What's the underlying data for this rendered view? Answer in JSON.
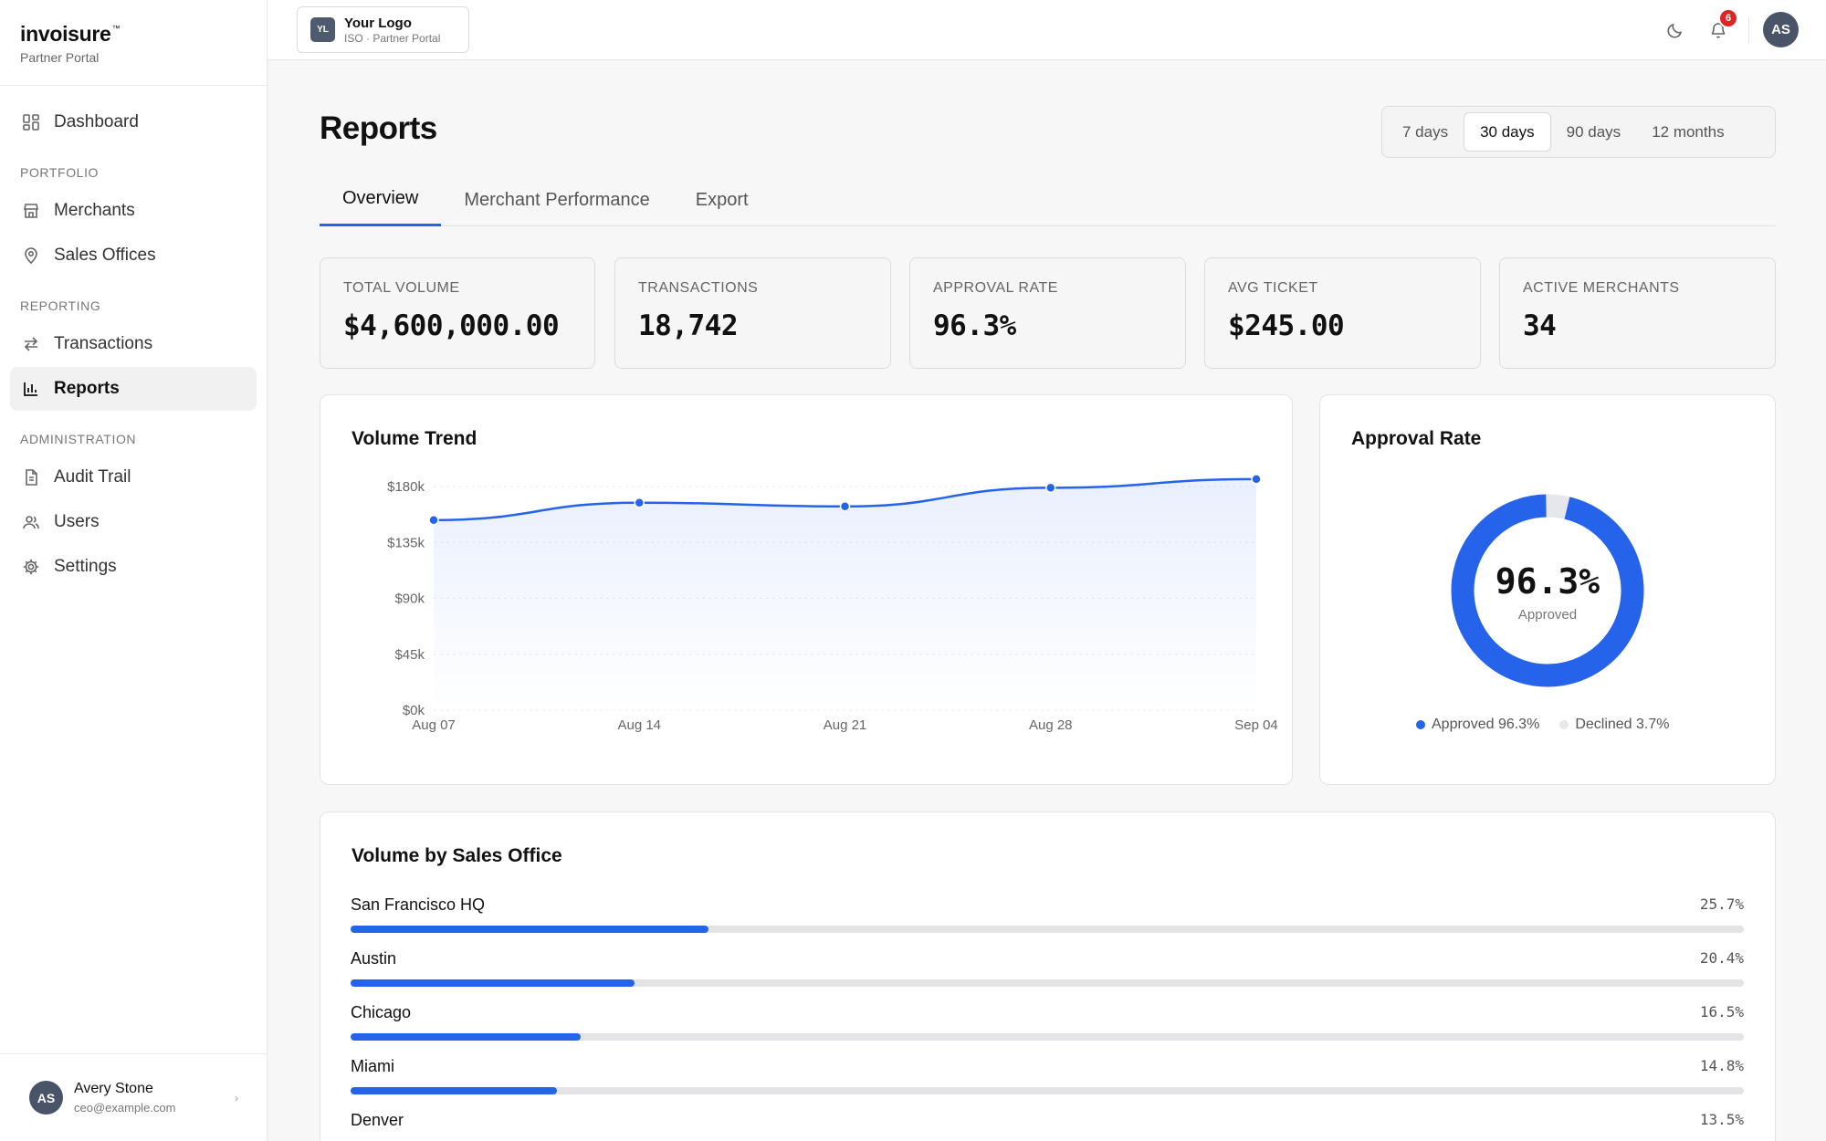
{
  "brand": {
    "name": "invoisure",
    "tm": "™",
    "subtitle": "Partner Portal"
  },
  "nav": {
    "dashboard": "Dashboard",
    "portfolio_label": "PORTFOLIO",
    "merchants": "Merchants",
    "sales_offices": "Sales Offices",
    "reporting_label": "REPORTING",
    "transactions": "Transactions",
    "reports": "Reports",
    "administration_label": "ADMINISTRATION",
    "audit_trail": "Audit Trail",
    "users": "Users",
    "settings": "Settings"
  },
  "user": {
    "initials": "AS",
    "name": "Avery Stone",
    "email": "ceo@example.com"
  },
  "topbar": {
    "logo_mark": "YL",
    "logo_title": "Your Logo",
    "logo_sub": "ISO · Partner Portal",
    "notification_count": "6",
    "avatar_initials": "AS",
    "icons": [
      "moon-icon",
      "bell-icon"
    ]
  },
  "page": {
    "title": "Reports"
  },
  "range": {
    "options": [
      "7 days",
      "30 days",
      "90 days",
      "12 months"
    ],
    "selected": "30 days"
  },
  "tabs": {
    "overview": "Overview",
    "merchant_performance": "Merchant Performance",
    "export": "Export",
    "active": "Overview"
  },
  "kpis": [
    {
      "label": "TOTAL VOLUME",
      "value": "$4,600,000.00"
    },
    {
      "label": "TRANSACTIONS",
      "value": "18,742"
    },
    {
      "label": "APPROVAL RATE",
      "value": "96.3%"
    },
    {
      "label": "AVG TICKET",
      "value": "$245.00"
    },
    {
      "label": "ACTIVE MERCHANTS",
      "value": "34"
    }
  ],
  "volume_trend": {
    "title": "Volume Trend"
  },
  "approval": {
    "title": "Approval Rate",
    "center_value": "96.3%",
    "center_label": "Approved",
    "approved_legend": "Approved 96.3%",
    "declined_legend": "Declined 3.7%",
    "approved_pct": 96.3,
    "colors": {
      "approved": "#2563eb",
      "declined": "#e5e7eb"
    }
  },
  "offices": {
    "title": "Volume by Sales Office",
    "items": [
      {
        "name": "San Francisco HQ",
        "pct_label": "25.7%",
        "pct": 25.7
      },
      {
        "name": "Austin",
        "pct_label": "20.4%",
        "pct": 20.4
      },
      {
        "name": "Chicago",
        "pct_label": "16.5%",
        "pct": 16.5
      },
      {
        "name": "Miami",
        "pct_label": "14.8%",
        "pct": 14.8
      },
      {
        "name": "Denver",
        "pct_label": "13.5%",
        "pct": 13.5
      }
    ]
  },
  "chart_data": [
    {
      "type": "area",
      "title": "Volume Trend",
      "x": [
        "Aug 07",
        "Aug 14",
        "Aug 21",
        "Aug 28",
        "Sep 04"
      ],
      "series": [
        {
          "values": [
            153000,
            167000,
            164000,
            179000,
            190000
          ]
        }
      ],
      "ylim": [
        0,
        180000
      ],
      "yticks": [
        "$0k",
        "$45k",
        "$90k",
        "$135k",
        "$180k"
      ],
      "grid": true,
      "color": "#2563eb"
    },
    {
      "type": "pie",
      "title": "Approval Rate",
      "categories": [
        "Approved",
        "Declined"
      ],
      "values": [
        96.3,
        3.7
      ],
      "colors": [
        "#2563eb",
        "#e5e7eb"
      ]
    },
    {
      "type": "bar",
      "title": "Volume by Sales Office",
      "categories": [
        "San Francisco HQ",
        "Austin",
        "Chicago",
        "Miami",
        "Denver"
      ],
      "values": [
        25.7,
        20.4,
        16.5,
        14.8,
        13.5
      ],
      "ylim": [
        0,
        100
      ]
    }
  ]
}
